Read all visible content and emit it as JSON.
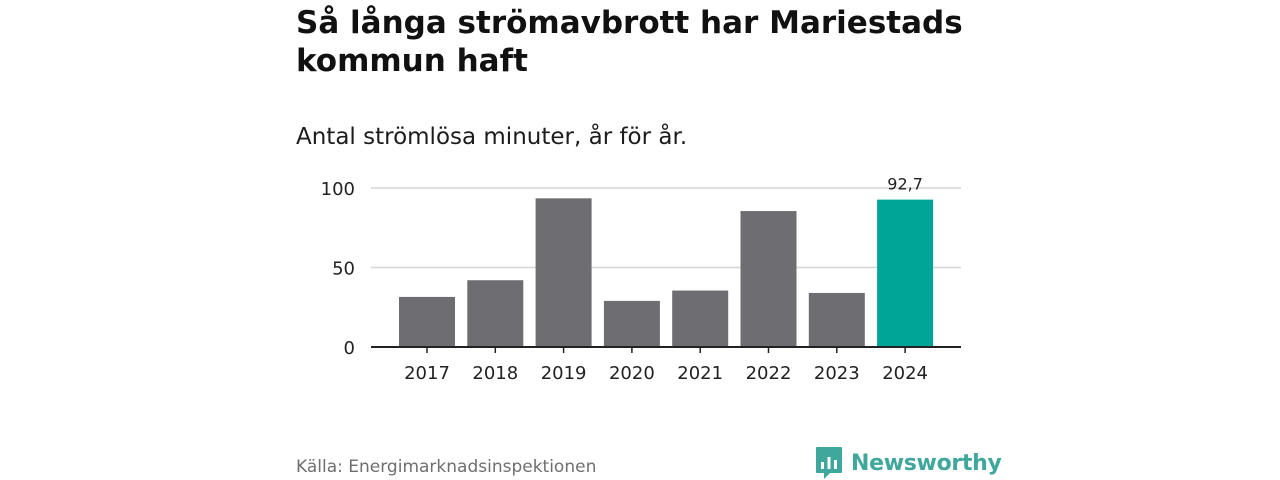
{
  "chart_data": {
    "type": "bar",
    "title": "Så långa strömavbrott har Mariestads kommun haft",
    "subtitle": "Antal strömlösa minuter, år för år.",
    "xlabel": "",
    "ylabel": "",
    "categories": [
      "2017",
      "2018",
      "2019",
      "2020",
      "2021",
      "2022",
      "2023",
      "2024"
    ],
    "values": [
      31.5,
      42,
      93.5,
      29,
      35.5,
      85.5,
      34,
      92.7
    ],
    "ylim": [
      0,
      100
    ],
    "yticks": [
      0,
      50,
      100
    ],
    "ytick_labels": [
      "0",
      "50",
      "100"
    ],
    "grid": true,
    "highlight_index": 7,
    "highlight_label": "92,7",
    "colors": {
      "bar": "#6e6d72",
      "highlight": "#00a598",
      "grid": "#d6d6d6",
      "axis": "#222222"
    }
  },
  "footer": {
    "source": "Källa: Energimarknadsinspektionen",
    "brand": "Newsworthy",
    "brand_icon": "newsworthy-logo-icon",
    "brand_color": "#3fa79c"
  }
}
